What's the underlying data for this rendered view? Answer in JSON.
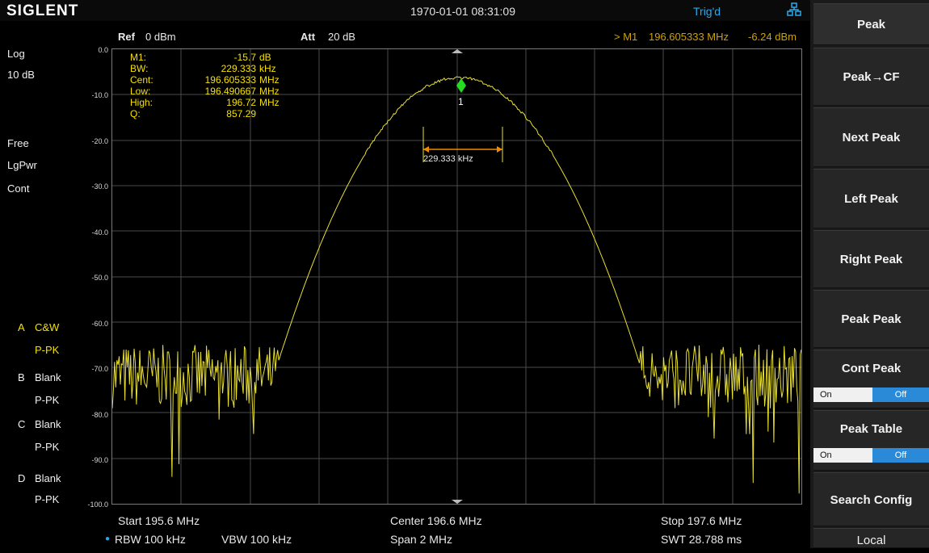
{
  "header": {
    "brand": "SIGLENT",
    "datetime": "1970-01-01 08:31:09",
    "trig_status": "Trig'd",
    "ref_label": "Ref",
    "ref_value": "0 dBm",
    "att_label": "Att",
    "att_value": "20 dB",
    "marker_readout": "> M1",
    "marker_freq": "196.605333 MHz",
    "marker_level": "-6.24 dBm"
  },
  "left_panel": {
    "scale": "Log",
    "div": "10 dB",
    "trigger": "Free",
    "detector": "LgPwr",
    "sweep": "Cont",
    "traces": [
      {
        "letter": "A",
        "mode": "C&W",
        "det": "P-PK",
        "active": true
      },
      {
        "letter": "B",
        "mode": "Blank",
        "det": "P-PK",
        "active": false
      },
      {
        "letter": "C",
        "mode": "Blank",
        "det": "P-PK",
        "active": false
      },
      {
        "letter": "D",
        "mode": "Blank",
        "det": "P-PK",
        "active": false
      }
    ]
  },
  "marker_info": {
    "m1_label": "M1:",
    "m1_value": "-15.7",
    "m1_unit": "dB",
    "bw_label": "BW:",
    "bw_value": "229.333",
    "bw_unit": "kHz",
    "cent_label": "Cent:",
    "cent_value": "196.605333",
    "cent_unit": "MHz",
    "low_label": "Low:",
    "low_value": "196.490667",
    "low_unit": "MHz",
    "high_label": "High:",
    "high_value": "196.72",
    "high_unit": "MHz",
    "q_label": "Q:",
    "q_value": "857.29"
  },
  "plot": {
    "y_ticks": [
      "0.0",
      "-10.0",
      "-20.0",
      "-30.0",
      "-40.0",
      "-50.0",
      "-60.0",
      "-70.0",
      "-80.0",
      "-90.0",
      "-100.0"
    ],
    "bw_annotation": "229.333 kHz",
    "marker_number": "1",
    "trace_color": "#e8e030"
  },
  "chart_data": {
    "type": "line",
    "x_unit": "MHz",
    "y_unit": "dBm",
    "xlim": [
      195.6,
      197.6
    ],
    "ylim": [
      -100,
      0
    ],
    "peak": {
      "x": 196.605333,
      "y": -6.24
    },
    "noise_floor": -72,
    "bw_3db_khz": 229.333,
    "grid": true
  },
  "footer": {
    "start": "Start  195.6 MHz",
    "center": "Center  196.6 MHz",
    "stop": "Stop  197.6 MHz",
    "rbw": "RBW  100 kHz",
    "vbw": "VBW  100 kHz",
    "span": "Span   2 MHz",
    "swt": "SWT  28.788 ms"
  },
  "softkeys": {
    "title": "Peak",
    "peak_cf": "Peak→CF",
    "next_peak": "Next Peak",
    "left_peak": "Left Peak",
    "right_peak": "Right Peak",
    "peak_peak": "Peak Peak",
    "cont_peak": "Cont Peak",
    "cont_on": "On",
    "cont_off": "Off",
    "peak_table": "Peak Table",
    "table_on": "On",
    "table_off": "Off",
    "search_config": "Search Config",
    "local": "Local"
  }
}
